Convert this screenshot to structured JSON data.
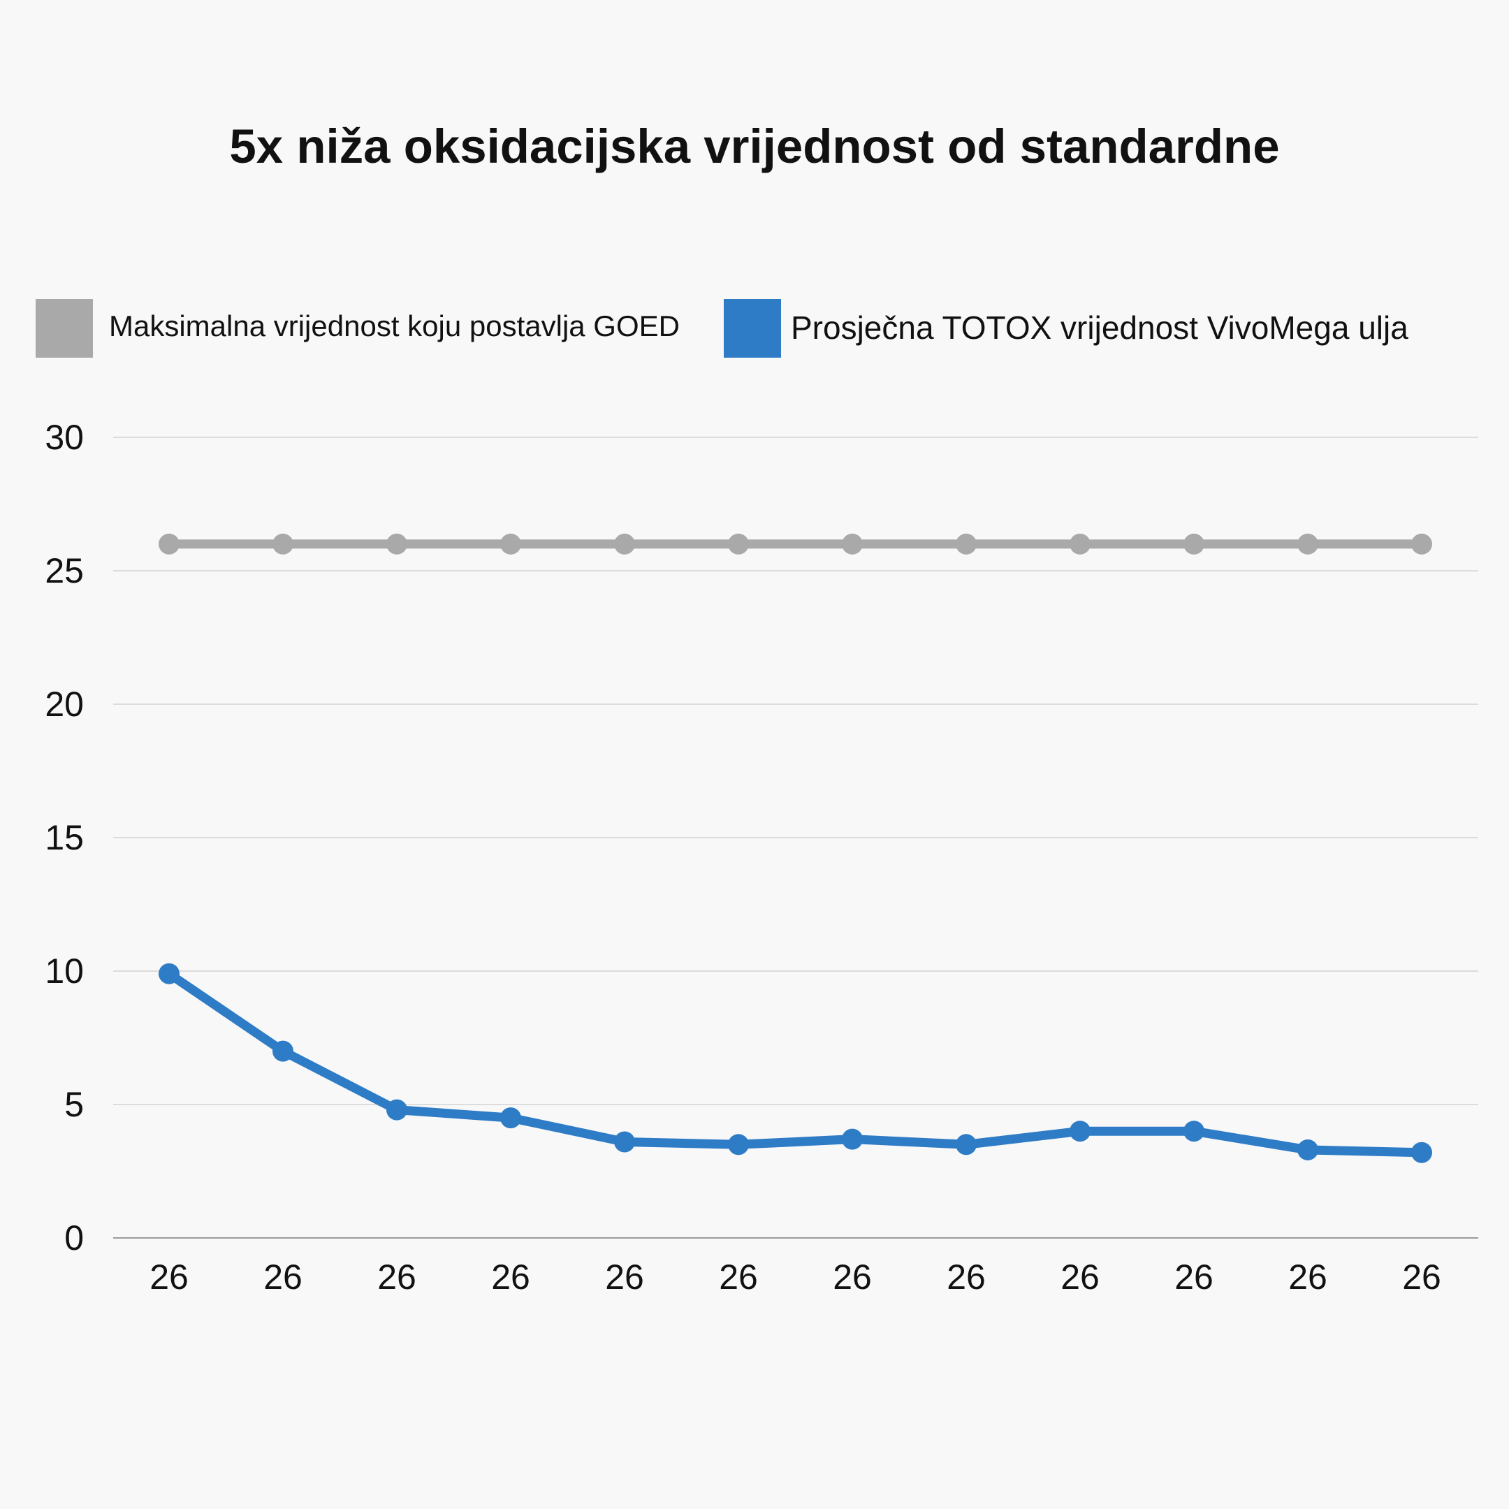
{
  "chart_data": {
    "type": "line",
    "title": "5x niža oksidacijska vrijednost od standardne",
    "xlabel": "",
    "ylabel": "",
    "categories": [
      "26",
      "26",
      "26",
      "26",
      "26",
      "26",
      "26",
      "26",
      "26",
      "26",
      "26",
      "26"
    ],
    "ylim": [
      0,
      30
    ],
    "yticks": [
      0,
      5,
      10,
      15,
      20,
      25,
      30
    ],
    "grid": true,
    "legend_position": "top",
    "series": [
      {
        "name": "Maksimalna vrijednost koju postavlja GOED",
        "color": "#a9a9a9",
        "values": [
          26,
          26,
          26,
          26,
          26,
          26,
          26,
          26,
          26,
          26,
          26,
          26
        ]
      },
      {
        "name": "Prosječna TOTOX vrijednost VivoMega ulja",
        "color": "#2e7cc6",
        "values": [
          9.9,
          7.0,
          4.8,
          4.5,
          3.6,
          3.5,
          3.7,
          3.5,
          4.0,
          4.0,
          3.3,
          3.2
        ]
      }
    ]
  }
}
